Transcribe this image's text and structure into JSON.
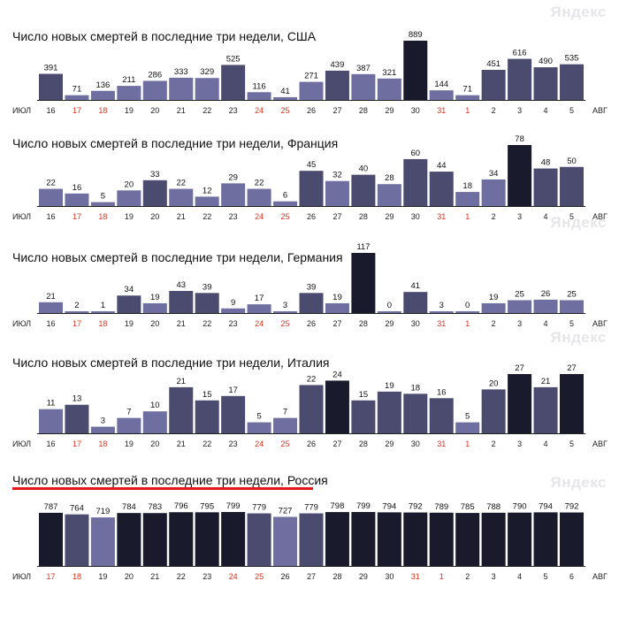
{
  "watermark": "Яндекс",
  "month_start": "июл",
  "month_end": "авг",
  "colors": {
    "light": "#6e6fa0",
    "mid": "#4b4b70",
    "dark": "#191a2c",
    "weekend": "#e0301e",
    "weekday": "#222222",
    "highlight_line": "#e8141c"
  },
  "chart_data": [
    {
      "type": "bar",
      "title": "Число новых смертей в последние три недели, США",
      "categories": [
        "16",
        "17",
        "18",
        "19",
        "20",
        "21",
        "22",
        "23",
        "24",
        "25",
        "26",
        "27",
        "28",
        "29",
        "30",
        "31",
        "1",
        "2",
        "3",
        "4",
        "5"
      ],
      "weekend_categories": [
        "17",
        "18",
        "24",
        "25",
        "31",
        "1"
      ],
      "values": [
        391,
        71,
        136,
        211,
        286,
        333,
        329,
        525,
        116,
        41,
        271,
        439,
        387,
        321,
        889,
        144,
        71,
        451,
        616,
        490,
        535
      ],
      "bar_shades": [
        "mid",
        "light",
        "light",
        "light",
        "light",
        "light",
        "light",
        "mid",
        "light",
        "light",
        "light",
        "mid",
        "light",
        "light",
        "dark",
        "light",
        "light",
        "mid",
        "mid",
        "mid",
        "mid"
      ],
      "ylim": [
        0,
        889
      ],
      "xlabel": "",
      "ylabel": ""
    },
    {
      "type": "bar",
      "title": "Число новых смертей в последние три недели, Франция",
      "categories": [
        "16",
        "17",
        "18",
        "19",
        "20",
        "21",
        "22",
        "23",
        "24",
        "25",
        "26",
        "27",
        "28",
        "29",
        "30",
        "31",
        "1",
        "2",
        "3",
        "4",
        "5"
      ],
      "weekend_categories": [
        "17",
        "18",
        "24",
        "25",
        "31",
        "1"
      ],
      "values": [
        22,
        16,
        5,
        20,
        33,
        22,
        12,
        29,
        22,
        6,
        45,
        32,
        40,
        28,
        60,
        44,
        18,
        34,
        78,
        48,
        50
      ],
      "bar_shades": [
        "light",
        "light",
        "light",
        "light",
        "mid",
        "light",
        "light",
        "light",
        "light",
        "light",
        "mid",
        "light",
        "mid",
        "light",
        "mid",
        "mid",
        "light",
        "light",
        "dark",
        "mid",
        "mid"
      ],
      "ylim": [
        0,
        78
      ],
      "xlabel": "",
      "ylabel": ""
    },
    {
      "type": "bar",
      "title": "Число новых смертей в последние три недели, Германия",
      "categories": [
        "16",
        "17",
        "18",
        "19",
        "20",
        "21",
        "22",
        "23",
        "24",
        "25",
        "26",
        "27",
        "28",
        "29",
        "30",
        "31",
        "1",
        "2",
        "3",
        "4",
        "5"
      ],
      "weekend_categories": [
        "17",
        "18",
        "24",
        "25",
        "31",
        "1"
      ],
      "values": [
        21,
        2,
        1,
        34,
        19,
        43,
        39,
        9,
        17,
        3,
        39,
        19,
        117,
        0,
        41,
        3,
        0,
        19,
        25,
        26,
        25
      ],
      "bar_shades": [
        "light",
        "light",
        "light",
        "mid",
        "light",
        "mid",
        "mid",
        "light",
        "light",
        "light",
        "mid",
        "light",
        "dark",
        "light",
        "mid",
        "light",
        "light",
        "light",
        "light",
        "light",
        "light"
      ],
      "ylim": [
        0,
        117
      ],
      "xlabel": "",
      "ylabel": ""
    },
    {
      "type": "bar",
      "title": "Число новых смертей в последние три недели, Италия",
      "categories": [
        "16",
        "17",
        "18",
        "19",
        "20",
        "21",
        "22",
        "23",
        "24",
        "25",
        "26",
        "27",
        "28",
        "29",
        "30",
        "31",
        "1",
        "2",
        "3",
        "4",
        "5"
      ],
      "weekend_categories": [
        "17",
        "18",
        "24",
        "25",
        "31",
        "1"
      ],
      "values": [
        11,
        13,
        3,
        7,
        10,
        21,
        15,
        17,
        5,
        7,
        22,
        24,
        15,
        19,
        18,
        16,
        5,
        20,
        27,
        21,
        27
      ],
      "bar_shades": [
        "light",
        "mid",
        "light",
        "light",
        "light",
        "mid",
        "mid",
        "mid",
        "light",
        "light",
        "mid",
        "dark",
        "mid",
        "mid",
        "mid",
        "mid",
        "light",
        "mid",
        "dark",
        "mid",
        "dark"
      ],
      "ylim": [
        0,
        27
      ],
      "xlabel": "",
      "ylabel": ""
    },
    {
      "type": "bar",
      "title": "Число новых смертей в последние три недели, Россия",
      "categories": [
        "17",
        "18",
        "19",
        "20",
        "21",
        "22",
        "23",
        "24",
        "25",
        "26",
        "27",
        "28",
        "29",
        "30",
        "31",
        "1",
        "2",
        "3",
        "4",
        "5",
        "6"
      ],
      "weekend_categories": [
        "17",
        "18",
        "24",
        "25",
        "31",
        "1"
      ],
      "values": [
        787,
        764,
        719,
        784,
        783,
        796,
        795,
        799,
        779,
        727,
        779,
        798,
        799,
        794,
        792,
        789,
        785,
        788,
        790,
        794,
        792
      ],
      "bar_shades": [
        "dark",
        "mid",
        "light",
        "dark",
        "dark",
        "dark",
        "dark",
        "dark",
        "mid",
        "light",
        "mid",
        "dark",
        "dark",
        "dark",
        "dark",
        "dark",
        "dark",
        "dark",
        "dark",
        "dark",
        "dark"
      ],
      "ylim": [
        0,
        799
      ],
      "xlabel": "",
      "ylabel": ""
    }
  ]
}
